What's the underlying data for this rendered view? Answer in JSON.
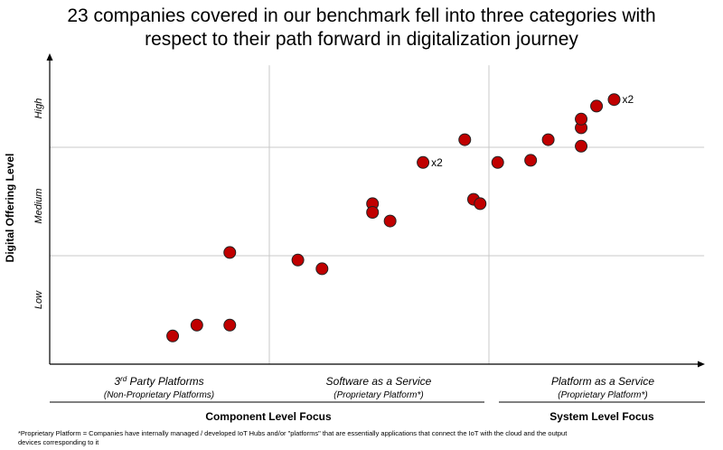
{
  "chart_data": {
    "type": "scatter",
    "title_lines": [
      "23 companies covered in our benchmark fell into three categories with",
      "respect to their path forward in digitalization journey"
    ],
    "ylabel": "Digital Offering Level",
    "y_tick_labels": [
      "Low",
      "Medium",
      "High"
    ],
    "x_categories": [
      {
        "sup_prefix": "3",
        "sup": "rd",
        "label": " Party Platforms",
        "sublabel": "(Non-Proprietary Platforms)"
      },
      {
        "label": "Software as a Service",
        "sublabel": "(Proprietary Platform*)"
      },
      {
        "label": "Platform as a Service",
        "sublabel": "(Proprietary Platform*)"
      }
    ],
    "groups": [
      {
        "label": "Component Level Focus",
        "span": [
          0,
          1.98
        ]
      },
      {
        "label": "System Level Focus",
        "span": [
          2.05,
          2.98
        ]
      }
    ],
    "xlim": [
      0,
      2.98
    ],
    "ylim": [
      0,
      2.84
    ],
    "grid": {
      "x": [
        1,
        2
      ],
      "y": [
        1,
        2
      ]
    },
    "marker_color": "#C00000",
    "points": [
      {
        "x": 0.56,
        "y": 0.26
      },
      {
        "x": 0.67,
        "y": 0.36
      },
      {
        "x": 0.82,
        "y": 0.36
      },
      {
        "x": 0.82,
        "y": 1.03
      },
      {
        "x": 1.13,
        "y": 0.96
      },
      {
        "x": 1.24,
        "y": 0.88
      },
      {
        "x": 1.47,
        "y": 1.48
      },
      {
        "x": 1.47,
        "y": 1.4
      },
      {
        "x": 1.55,
        "y": 1.32
      },
      {
        "x": 1.7,
        "y": 1.86,
        "label": "x2"
      },
      {
        "x": 1.89,
        "y": 2.07
      },
      {
        "x": 1.93,
        "y": 1.52
      },
      {
        "x": 1.96,
        "y": 1.48
      },
      {
        "x": 2.04,
        "y": 1.86
      },
      {
        "x": 2.19,
        "y": 1.88
      },
      {
        "x": 2.27,
        "y": 2.07
      },
      {
        "x": 2.42,
        "y": 2.01
      },
      {
        "x": 2.42,
        "y": 2.18
      },
      {
        "x": 2.42,
        "y": 2.26
      },
      {
        "x": 2.49,
        "y": 2.38
      },
      {
        "x": 2.57,
        "y": 2.44,
        "label": "x2"
      }
    ],
    "footnote_lines": [
      "*Proprietary Platform = Companies have internally managed / developed IoT Hubs and/or \"platforms\" that are essentially applications that connect the IoT with the cloud and the output",
      "devices corresponding to it"
    ]
  }
}
